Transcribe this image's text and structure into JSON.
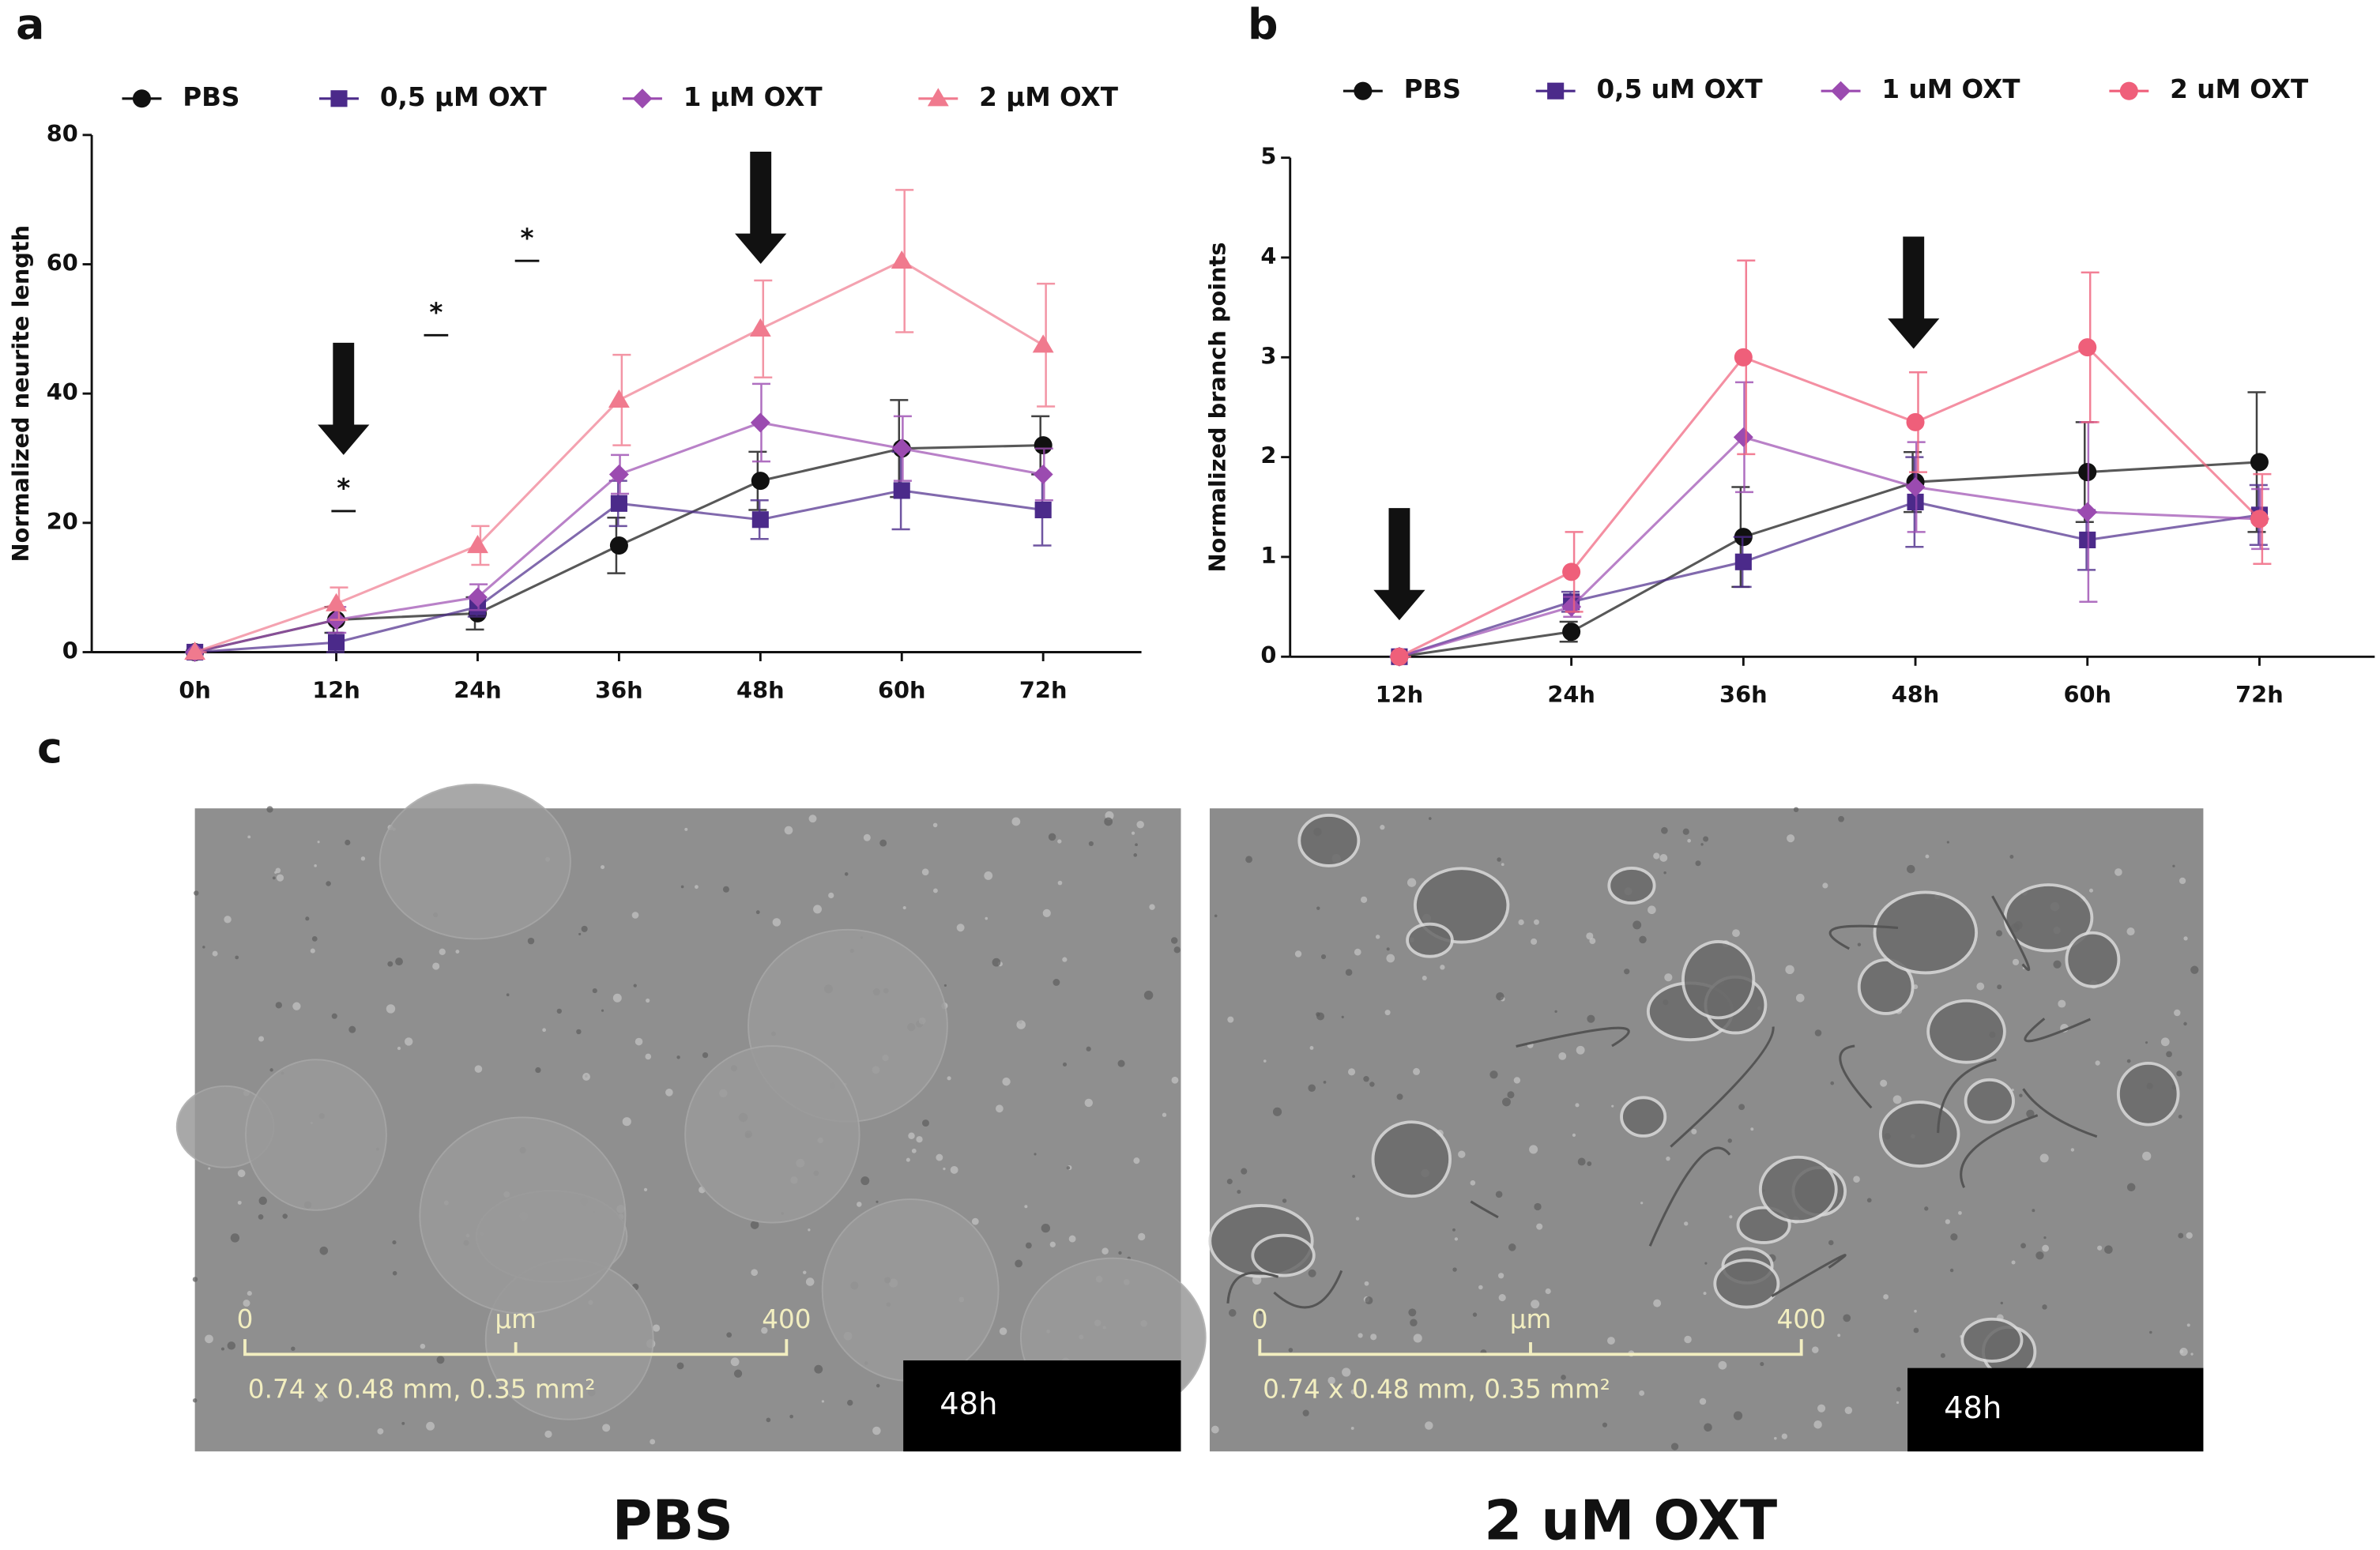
{
  "figure": {
    "panel_labels": [
      "a",
      "b",
      "c"
    ],
    "images": [
      {
        "caption": "PBS",
        "time": "48h",
        "scale_start": "0",
        "scale_unit": "µm",
        "scale_end": "400",
        "field": "0.74 x 0.48 mm, 0.35 mm²"
      },
      {
        "caption": "2 uM OXT",
        "time": "48h",
        "scale_start": "0",
        "scale_unit": "µm",
        "scale_end": "400",
        "field": "0.74 x 0.48 mm, 0.35 mm²"
      }
    ]
  },
  "chart_data": [
    {
      "type": "line",
      "y_label": "Normalized neurite length",
      "categories": [
        "0h",
        "12h",
        "24h",
        "36h",
        "48h",
        "60h",
        "72h"
      ],
      "ylim": [
        0,
        80
      ],
      "yticks": [
        0,
        20,
        40,
        60,
        80
      ],
      "annotations": [
        "*",
        "*",
        "*"
      ],
      "series": [
        {
          "name": "PBS",
          "color": "#111111",
          "marker": "circle",
          "values": [
            0,
            5,
            6,
            16.5,
            26.5,
            31.5,
            32
          ],
          "errors": [
            0,
            2,
            2.5,
            4.3,
            4.5,
            7.5,
            4.5
          ]
        },
        {
          "name": "0,5 µM OXT",
          "color": "#4b2a8a",
          "marker": "square",
          "values": [
            0,
            1.5,
            7,
            23,
            20.5,
            25,
            22
          ],
          "errors": [
            0,
            1.5,
            1.5,
            3.5,
            3,
            6,
            5.5
          ]
        },
        {
          "name": "1 µM OXT",
          "color": "#9b4bb0",
          "marker": "diamond",
          "values": [
            0,
            5,
            8.5,
            27.5,
            35.5,
            31.5,
            27.5
          ],
          "errors": [
            0,
            2,
            2,
            3,
            6,
            5,
            4
          ]
        },
        {
          "name": "2 µM OXT",
          "color": "#f07a8e",
          "marker": "triangle",
          "values": [
            0,
            7.5,
            16.5,
            39,
            50,
            60.5,
            47.5
          ],
          "errors": [
            0,
            2.5,
            3,
            7,
            7.5,
            11,
            9.5
          ]
        }
      ]
    },
    {
      "type": "line",
      "y_label": "Normalized branch points",
      "categories": [
        "12h",
        "24h",
        "36h",
        "48h",
        "60h",
        "72h"
      ],
      "ylim": [
        0,
        5
      ],
      "yticks": [
        0,
        1,
        2,
        3,
        4,
        5
      ],
      "series": [
        {
          "name": "PBS",
          "color": "#111111",
          "marker": "circle",
          "values": [
            0,
            0.25,
            1.2,
            1.75,
            1.85,
            1.95
          ],
          "errors": [
            0,
            0.1,
            0.5,
            0.3,
            0.5,
            0.7
          ]
        },
        {
          "name": "0,5 uM OXT",
          "color": "#4b2a8a",
          "marker": "square",
          "values": [
            0,
            0.55,
            0.95,
            1.55,
            1.17,
            1.42
          ],
          "errors": [
            0,
            0.1,
            0.25,
            0.45,
            0.3,
            0.3
          ]
        },
        {
          "name": "1 uM OXT",
          "color": "#9b4bb0",
          "marker": "diamond",
          "values": [
            0,
            0.5,
            2.2,
            1.7,
            1.45,
            1.38
          ],
          "errors": [
            0,
            0.1,
            0.55,
            0.45,
            0.9,
            0.3
          ]
        },
        {
          "name": "2 uM OXT",
          "color": "#ef5f7a",
          "marker": "circle",
          "values": [
            0,
            0.85,
            3.0,
            2.35,
            3.1,
            1.38
          ],
          "errors": [
            0,
            0.4,
            0.97,
            0.5,
            0.75,
            0.45
          ]
        }
      ]
    }
  ]
}
